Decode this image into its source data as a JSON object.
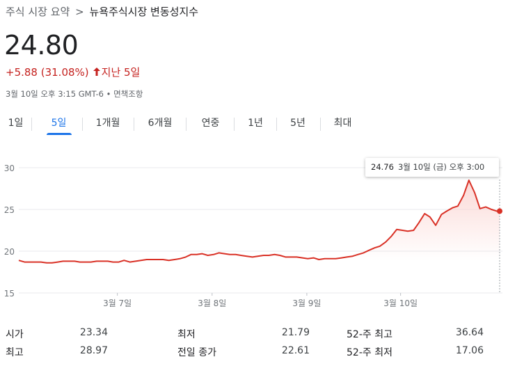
{
  "breadcrumb": {
    "root": "주식 시장 요약",
    "separator": ">",
    "current": "뉴욕주식시장 변동성지수"
  },
  "quote": {
    "price": "24.80",
    "change": "+5.88 (31.08%)",
    "period": "지난 5일",
    "timestamp": "3월 10일 오후 3:15 GMT-6 • 면책조항"
  },
  "tabs": [
    {
      "label": "1일",
      "active": false
    },
    {
      "label": "5일",
      "active": true
    },
    {
      "label": "1개월",
      "active": false
    },
    {
      "label": "6개월",
      "active": false
    },
    {
      "label": "연중",
      "active": false
    },
    {
      "label": "1년",
      "active": false
    },
    {
      "label": "5년",
      "active": false
    },
    {
      "label": "최대",
      "active": false
    }
  ],
  "tooltip": {
    "value": "24.76",
    "date": "3월 10일 (금) 오후 3:00"
  },
  "colors": {
    "line": "#d93025",
    "fill_top": "#fbd5d2",
    "accent": "#1a73e8",
    "grid": "#e8eaed"
  },
  "chart_data": {
    "type": "line",
    "ylim": [
      15,
      30
    ],
    "yticks": [
      15,
      20,
      25,
      30
    ],
    "xlim": [
      0,
      100
    ],
    "xticks": [
      {
        "x": 20.5,
        "label": "3월 7일"
      },
      {
        "x": 40.2,
        "label": "3월 8일"
      },
      {
        "x": 59.9,
        "label": "3월 9일"
      },
      {
        "x": 79.4,
        "label": "3월 10일"
      }
    ],
    "xlabel": "",
    "ylabel": "",
    "grid": true,
    "series": [
      {
        "x": [
          0,
          1.2,
          2.3,
          3.5,
          4.6,
          5.8,
          6.9,
          8.1,
          9.2,
          10.4,
          11.6,
          12.7,
          13.9,
          15.0,
          16.2,
          17.3,
          18.5,
          19.6,
          20.8,
          21.9,
          23.1,
          24.3,
          25.4,
          26.6,
          27.7,
          28.9,
          30.0,
          31.2,
          32.4,
          33.5,
          34.7,
          35.8,
          37.0,
          38.1,
          39.3,
          40.5,
          41.6,
          42.8,
          43.9,
          45.1,
          46.2,
          47.4,
          48.6,
          49.7,
          50.9,
          52.0,
          53.2,
          54.3,
          55.5,
          56.6,
          57.8,
          59.0,
          60.1,
          61.3,
          62.4,
          63.6,
          64.7,
          65.9,
          67.1,
          68.2,
          69.4,
          70.5,
          71.7,
          72.8,
          74.0,
          75.1,
          76.3,
          77.5,
          78.6,
          79.8,
          80.9,
          82.1,
          83.2,
          84.4,
          85.5,
          86.7,
          87.9,
          89.0,
          90.2,
          91.3,
          92.5,
          93.6,
          94.8,
          95.9,
          97.1,
          98.3,
          99.4,
          100
        ],
        "values": [
          18.9,
          18.7,
          18.7,
          18.7,
          18.7,
          18.6,
          18.6,
          18.7,
          18.8,
          18.8,
          18.8,
          18.7,
          18.7,
          18.7,
          18.8,
          18.8,
          18.8,
          18.7,
          18.7,
          18.9,
          18.7,
          18.8,
          18.9,
          19.0,
          19.0,
          19.0,
          19.0,
          18.9,
          19.0,
          19.1,
          19.3,
          19.6,
          19.6,
          19.7,
          19.5,
          19.6,
          19.8,
          19.7,
          19.6,
          19.6,
          19.5,
          19.4,
          19.3,
          19.4,
          19.5,
          19.5,
          19.6,
          19.5,
          19.3,
          19.3,
          19.3,
          19.2,
          19.1,
          19.2,
          19.0,
          19.1,
          19.1,
          19.1,
          19.2,
          19.3,
          19.4,
          19.6,
          19.8,
          20.1,
          20.4,
          20.6,
          21.1,
          21.8,
          22.6,
          22.5,
          22.4,
          22.5,
          23.4,
          24.5,
          24.1,
          23.1,
          24.4,
          24.8,
          25.2,
          25.4,
          26.7,
          28.5,
          27.0,
          25.1,
          25.3,
          25.0,
          24.8,
          24.8
        ]
      }
    ]
  },
  "stats": [
    {
      "label": "시가",
      "value": "23.34"
    },
    {
      "label": "최고",
      "value": "28.97"
    },
    {
      "label": "최저",
      "value": "21.79"
    },
    {
      "label": "전일 종가",
      "value": "22.61"
    },
    {
      "label": "52-주 최고",
      "value": "36.64"
    },
    {
      "label": "52-주 최저",
      "value": "17.06"
    }
  ]
}
